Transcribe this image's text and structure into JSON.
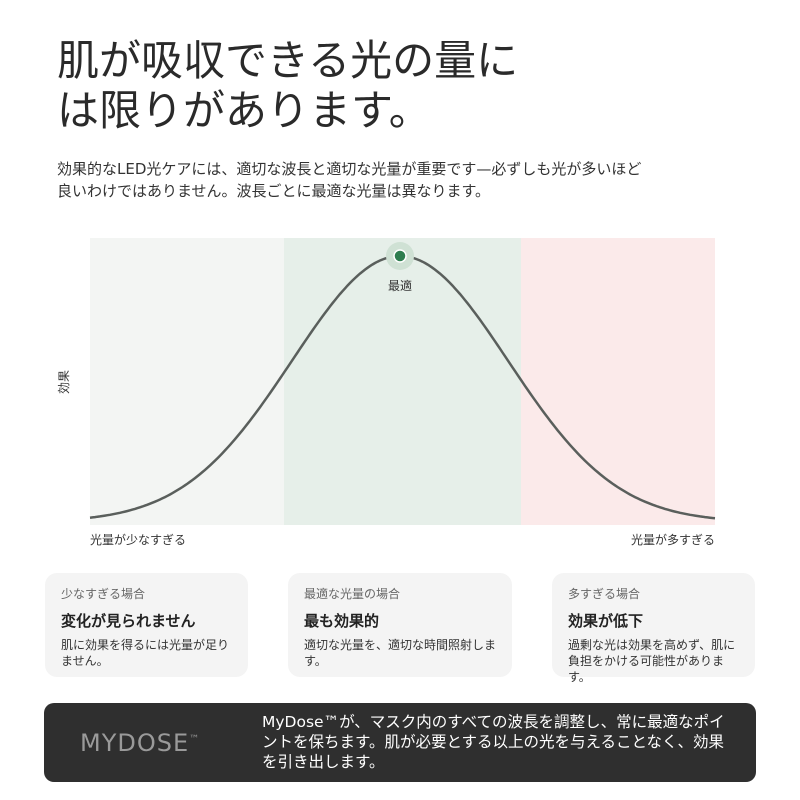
{
  "header": {
    "title_lines": [
      "肌が吸収できる光の量に",
      "は限りがあります。"
    ],
    "description_lines": [
      "効果的なLED光ケアには、適切な波長と適切な光量が重要です—必ずしも光が多いほど",
      "良いわけではありません。波長ごとに最適な光量は異なります。"
    ]
  },
  "diagram": {
    "y_label": "効果",
    "peak_label": "最適",
    "left_label": "光量が少なすぎる",
    "right_label": "光量が多すぎる"
  },
  "cards": [
    {
      "label": "少なすぎる場合",
      "heading": "変化が見られません",
      "body": "肌に効果を得るには光量が足りません。"
    },
    {
      "label": "最適な光量の場合",
      "heading": "最も効果的",
      "body": "適切な光量を、適切な時間照射します。"
    },
    {
      "label": "多すぎる場合",
      "heading": "効果が低下",
      "body": "過剰な光は効果を高めず、肌に負担をかける可能性があります。"
    }
  ],
  "banner": {
    "logo": "MYDOSE",
    "logo_mark": "™",
    "text": "MyDose™が、マスク内のすべての波長を調整し、常に最適なポイントを保ちます。肌が必要とする以上の光を与えることなく、効果を引き出します。"
  }
}
